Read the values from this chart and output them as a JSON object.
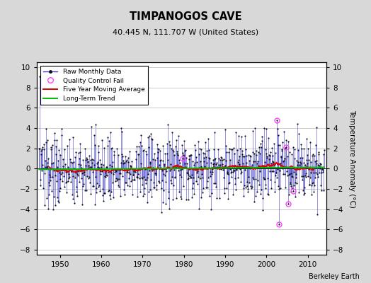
{
  "title": "TIMPANOGOS CAVE",
  "subtitle": "40.445 N, 111.707 W (United States)",
  "ylabel": "Temperature Anomaly (°C)",
  "attribution": "Berkeley Earth",
  "xlim": [
    1944.5,
    2014.5
  ],
  "ylim": [
    -8.5,
    10.5
  ],
  "yticks": [
    -8,
    -6,
    -4,
    -2,
    0,
    2,
    4,
    6,
    8,
    10
  ],
  "xticks": [
    1950,
    1960,
    1970,
    1980,
    1990,
    2000,
    2010
  ],
  "fig_bg_color": "#d8d8d8",
  "plot_bg_color": "#ffffff",
  "line_color": "#3333cc",
  "dot_color": "#111111",
  "moving_avg_color": "#dd0000",
  "trend_color": "#00bb00",
  "qc_fail_color": "#ff44ff",
  "grid_color": "#cccccc",
  "seed": 137
}
